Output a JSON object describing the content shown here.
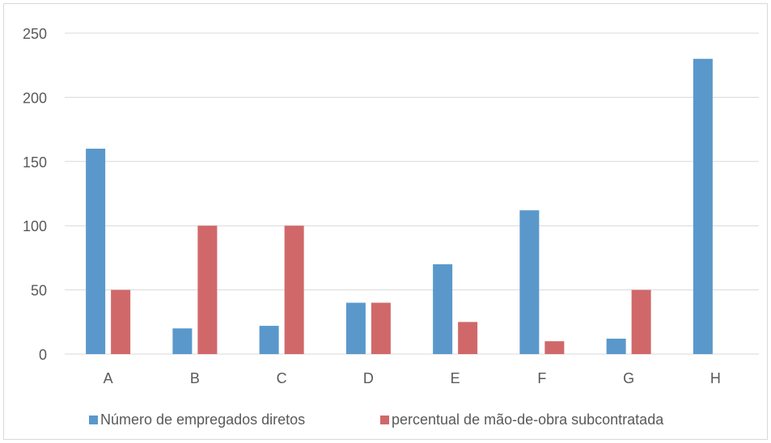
{
  "chart_data": {
    "type": "bar",
    "categories": [
      "A",
      "B",
      "C",
      "D",
      "E",
      "F",
      "G",
      "H"
    ],
    "series": [
      {
        "name": "Número de empregados diretos",
        "color": "#5a98cb",
        "values": [
          160,
          20,
          22,
          40,
          70,
          112,
          12,
          230
        ]
      },
      {
        "name": "percentual de mão-de-obra subcontratada",
        "color": "#d0686a",
        "values": [
          50,
          100,
          100,
          40,
          25,
          10,
          50,
          0
        ]
      }
    ],
    "yticks": [
      0,
      50,
      100,
      150,
      200,
      250
    ],
    "ylim": [
      0,
      250
    ],
    "grid": true,
    "legend_position": "bottom",
    "gridline_color": "#d9d9d9",
    "text_color": "#595959"
  }
}
